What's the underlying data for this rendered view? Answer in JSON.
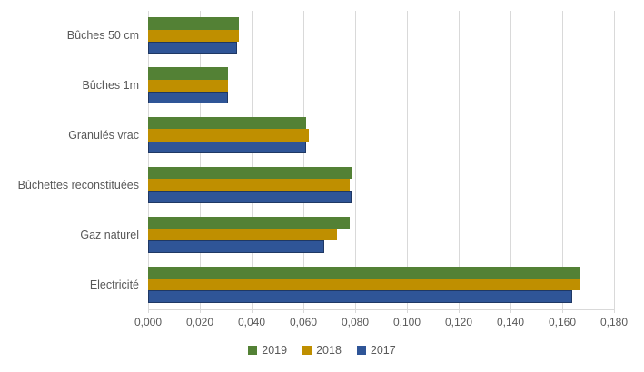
{
  "chart_data": {
    "type": "bar",
    "orientation": "horizontal",
    "title": "",
    "xlabel": "",
    "ylabel": "",
    "categories": [
      "Bûches 50 cm",
      "Bûches 1m",
      "Granulés vrac",
      "Bûchettes reconstituées",
      "Gaz naturel",
      "Electricité"
    ],
    "series": [
      {
        "name": "2019",
        "color": "#538135",
        "values": [
          0.035,
          0.031,
          0.061,
          0.079,
          0.078,
          0.167
        ]
      },
      {
        "name": "2018",
        "color": "#BF8F00",
        "values": [
          0.035,
          0.031,
          0.062,
          0.078,
          0.073,
          0.167
        ]
      },
      {
        "name": "2017",
        "color": "#2F5597",
        "border_color": "#1F3864",
        "values": [
          0.0345,
          0.0308,
          0.061,
          0.0785,
          0.068,
          0.164
        ]
      }
    ],
    "xlim": [
      0,
      0.18
    ],
    "x_tick_step": 0.02,
    "x_tick_labels": [
      "0,000",
      "0,020",
      "0,040",
      "0,060",
      "0,080",
      "0,100",
      "0,120",
      "0,140",
      "0,160",
      "0,180"
    ],
    "grid": true,
    "gridline_color": "#D9D9D9",
    "text_color": "#595959",
    "legend_position": "bottom",
    "legend_entries": [
      "2019",
      "2018",
      "2017"
    ],
    "background_color": "#FFFFFF"
  }
}
